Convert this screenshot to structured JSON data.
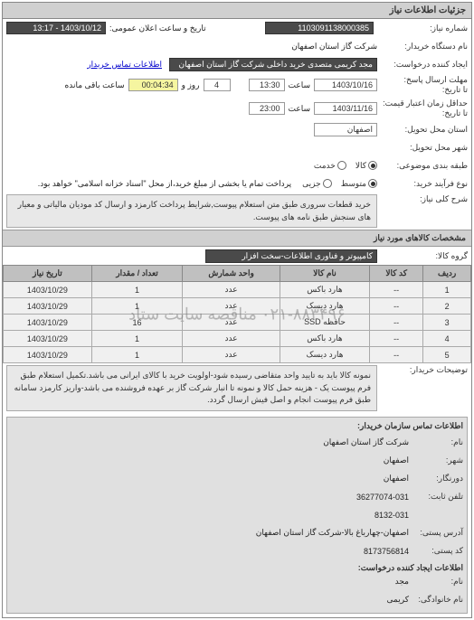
{
  "panel": {
    "title": "جزئیات اطلاعات نیاز"
  },
  "header": {
    "need_number_label": "شماره نیاز:",
    "need_number": "1103091138000385",
    "announce_label": "تاریخ و ساعت اعلان عمومی:",
    "announce_value": "1403/10/12 - 13:17"
  },
  "buyer": {
    "org_label": "نام دستگاه خریدار:",
    "org_value": "شرکت گاز استان اصفهان",
    "creator_label": "ایجاد کننده درخواست:",
    "creator_value": "مجد کریمی متصدی خرید داخلی شرکت گاز استان اصفهان",
    "contact_link": "اطلاعات تماس خریدار"
  },
  "deadlines": {
    "response_deadline_label": "مهلت ارسال پاسخ:",
    "to_date_label": "تا تاریخ:",
    "response_date": "1403/10/16",
    "response_time_label": "ساعت",
    "response_time": "13:30",
    "days_label": "روز و",
    "days_value": "4",
    "remaining_time": "00:04:34",
    "remaining_label": "ساعت باقی مانده",
    "price_validity_label": "حداقل زمان اعتبار قیمت:",
    "price_to_date_label": "تا تاریخ:",
    "price_date": "1403/11/16",
    "price_time_label": "ساعت",
    "price_time": "23:00"
  },
  "location": {
    "province_label": "استان محل تحویل:",
    "province_value": "اصفهان",
    "city_label": "شهر محل تحویل:"
  },
  "commodity": {
    "region_label": "طبقه بندی موضوعی:",
    "options": [
      {
        "label": "کالا",
        "checked": true
      },
      {
        "label": "خدمت",
        "checked": false
      }
    ]
  },
  "process": {
    "type_label": "نوع فرآیند خرید:",
    "options": [
      {
        "label": "متوسط",
        "checked": true
      },
      {
        "label": "جزیی",
        "checked": false
      }
    ],
    "note": "پرداخت تمام یا بخشی از مبلغ خرید،از محل \"اسناد خزانه اسلامی\" خواهد بود."
  },
  "description": {
    "general_label": "شرح کلی نیاز:",
    "general_text": "خرید قطعات سروری طبق متن استعلام پیوست,شرایط پرداخت کارمزد و ارسال کد مودیان مالیاتی و معیار های سنجش طبق نامه های پیوست."
  },
  "goods_section": {
    "title": "مشخصات کالاهای مورد نیاز",
    "group_label": "گروه کالا:",
    "group_value": "کامپیوتر و فناوری اطلاعات-سخت افزار"
  },
  "table": {
    "columns": [
      "ردیف",
      "کد کالا",
      "نام کالا",
      "واحد شمارش",
      "تعداد / مقدار",
      "تاریخ نیاز"
    ],
    "rows": [
      [
        "1",
        "--",
        "هارد باکس",
        "عدد",
        "1",
        "1403/10/29"
      ],
      [
        "2",
        "--",
        "هارد دیسک",
        "عدد",
        "1",
        "1403/10/29"
      ],
      [
        "3",
        "--",
        "حافظه SSD",
        "عدد",
        "16",
        "1403/10/29"
      ],
      [
        "4",
        "--",
        "هارد باکس",
        "عدد",
        "1",
        "1403/10/29"
      ],
      [
        "5",
        "--",
        "هارد دیسک",
        "عدد",
        "1",
        "1403/10/29"
      ]
    ],
    "watermark": "۰۲۱-۸۸۳۴۹۶ مناقصه سایت ستاد"
  },
  "buyer_notes": {
    "label": "توضیحات خریدار:",
    "text": "نمونه کالا باید به تایید واحد متقاضی رسیده شود-اولویت خرید با کالای ایرانی می باشد.تکمیل استعلام طبق فرم پیوست یک - هزینه حمل کالا و نمونه تا انبار شرکت گاز بر عهده فروشنده می باشد-واریز کارمزد سامانه طبق فرم پیوست انجام و اصل فیش ارسال گردد."
  },
  "contact": {
    "title": "اطلاعات تماس سازمان خریدار:",
    "name_label": "نام:",
    "name_value": "شرکت گاز استان اصفهان",
    "city_label": "شهر:",
    "city_value": "اصفهان",
    "fax_label": "دورنگار:",
    "fax_value": "اصفهان",
    "phone_label": "تلفن ثابت:",
    "phone_value": "36277074-031",
    "phone2_value": "8132-031",
    "postal_address_label": "آدرس پستی:",
    "postal_address_value": "اصفهان-چهارباغ بالا-شرکت گاز استان اصفهان",
    "postal_code_label": "کد پستی:",
    "postal_code_value": "8173756814",
    "request_creator_label": "اطلاعات ایجاد کننده درخواست:",
    "req_name_label": "نام:",
    "req_name_value": "مجد",
    "family_label": "نام خانوادگی:",
    "family_value": "کریمی"
  }
}
